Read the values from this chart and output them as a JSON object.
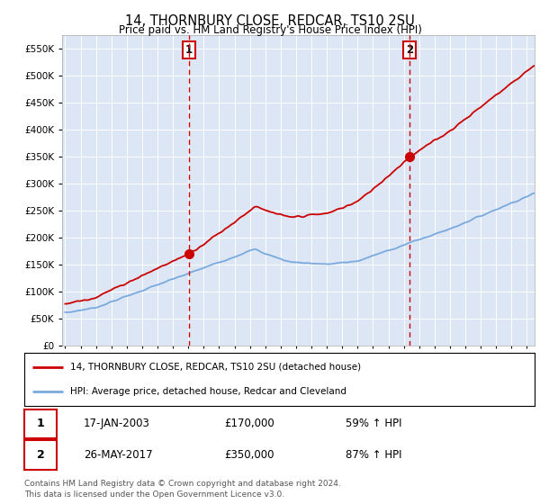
{
  "title": "14, THORNBURY CLOSE, REDCAR, TS10 2SU",
  "subtitle": "Price paid vs. HM Land Registry's House Price Index (HPI)",
  "ylim": [
    0,
    575000
  ],
  "yticks": [
    0,
    50000,
    100000,
    150000,
    200000,
    250000,
    300000,
    350000,
    400000,
    450000,
    500000,
    550000
  ],
  "bg_color": "#dce6f5",
  "line_color_red": "#cc0000",
  "line_color_blue": "#7aaadd",
  "vline_color": "#cc0000",
  "sale1_x": 2003.05,
  "sale1_y": 170000,
  "sale1_label": "17-JAN-2003",
  "sale1_price": "£170,000",
  "sale1_pct": "59% ↑ HPI",
  "sale2_x": 2017.4,
  "sale2_y": 350000,
  "sale2_label": "26-MAY-2017",
  "sale2_price": "£350,000",
  "sale2_pct": "87% ↑ HPI",
  "legend_line1": "14, THORNBURY CLOSE, REDCAR, TS10 2SU (detached house)",
  "legend_line2": "HPI: Average price, detached house, Redcar and Cleveland",
  "footer": "Contains HM Land Registry data © Crown copyright and database right 2024.\nThis data is licensed under the Open Government Licence v3.0.",
  "xmin": 1994.8,
  "xmax": 2025.5
}
